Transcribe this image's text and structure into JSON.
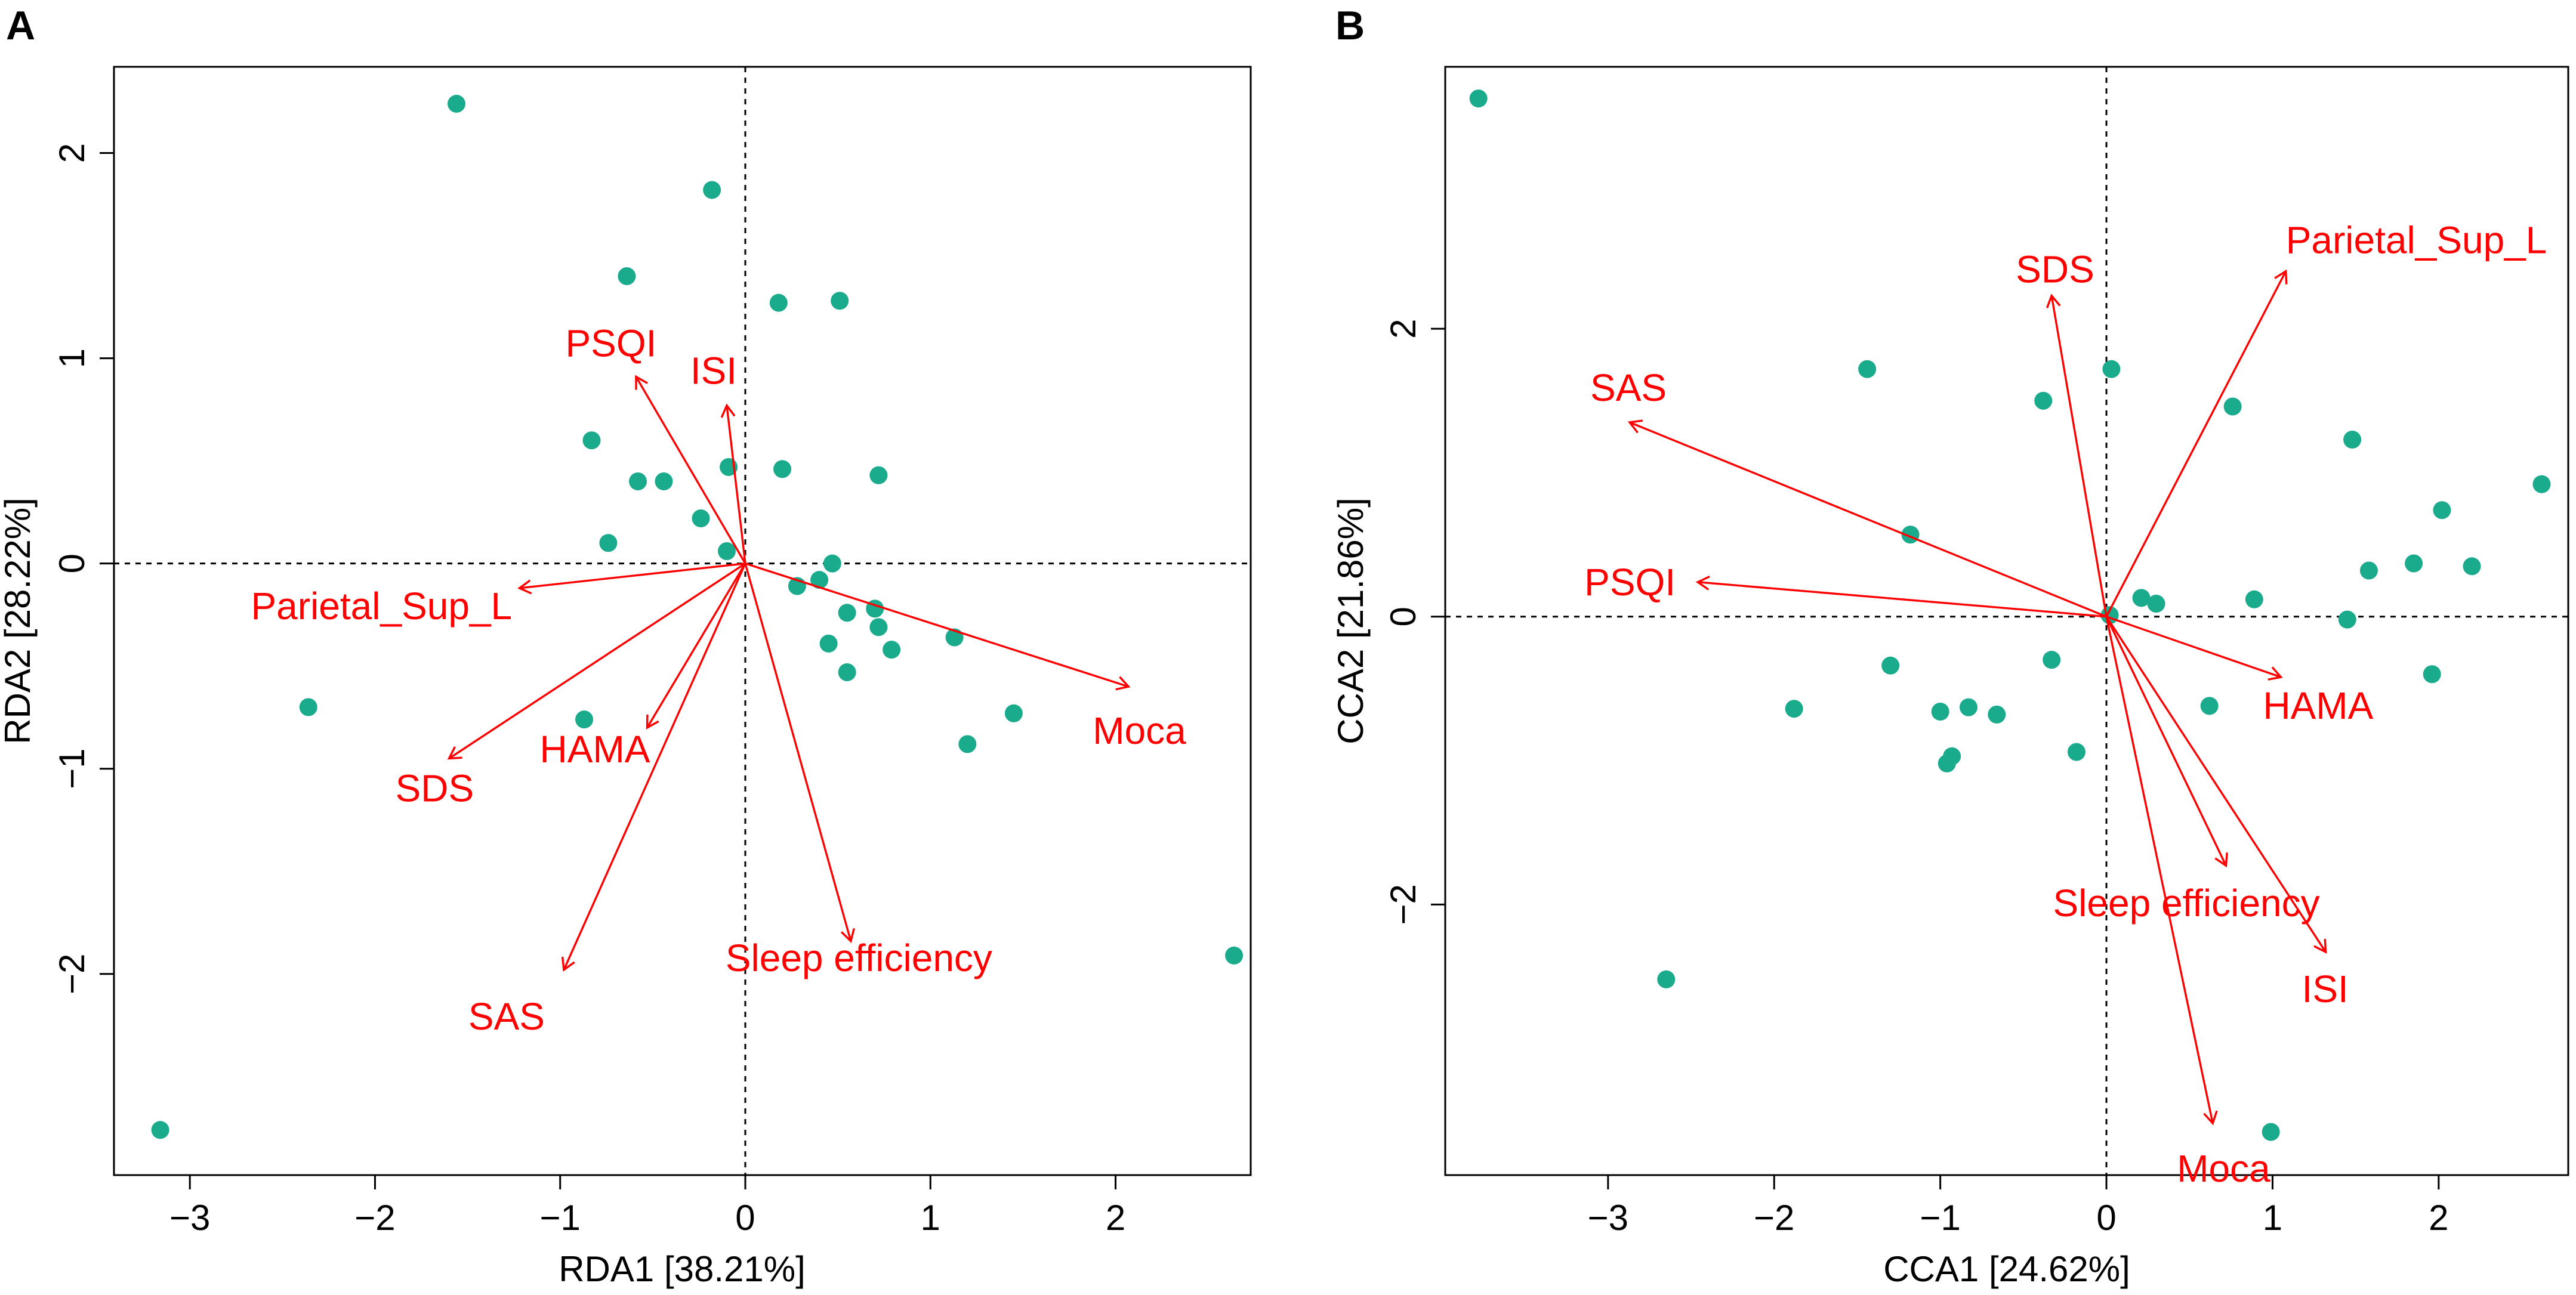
{
  "chart_data": [
    {
      "panel": "A",
      "type": "scatter",
      "title": "",
      "xlabel": "RDA1  [38.21%]",
      "ylabel": "RDA2  [28.22%]",
      "xlim": [
        -3.41,
        2.73
      ],
      "ylim": [
        -2.98,
        2.42
      ],
      "xticks": [
        -3,
        -2,
        -1,
        0,
        1,
        2
      ],
      "yticks": [
        -2,
        -1,
        0,
        1,
        2
      ],
      "point_color": "#1aaa8c",
      "arrow_color": "#ff0000",
      "points": [
        {
          "x": -1.56,
          "y": 2.24
        },
        {
          "x": -0.18,
          "y": 1.82
        },
        {
          "x": -0.64,
          "y": 1.4
        },
        {
          "x": 0.18,
          "y": 1.27
        },
        {
          "x": 0.51,
          "y": 1.28
        },
        {
          "x": -0.83,
          "y": 0.6
        },
        {
          "x": -0.58,
          "y": 0.4
        },
        {
          "x": -0.44,
          "y": 0.4
        },
        {
          "x": -0.09,
          "y": 0.47
        },
        {
          "x": 0.2,
          "y": 0.46
        },
        {
          "x": 0.72,
          "y": 0.43
        },
        {
          "x": -0.24,
          "y": 0.22
        },
        {
          "x": -0.74,
          "y": 0.1
        },
        {
          "x": -0.1,
          "y": 0.06
        },
        {
          "x": 0.47,
          "y": 0.0
        },
        {
          "x": 0.4,
          "y": -0.08
        },
        {
          "x": 0.28,
          "y": -0.11
        },
        {
          "x": 0.55,
          "y": -0.24
        },
        {
          "x": 0.7,
          "y": -0.22
        },
        {
          "x": 0.72,
          "y": -0.31
        },
        {
          "x": 0.45,
          "y": -0.39
        },
        {
          "x": 0.79,
          "y": -0.42
        },
        {
          "x": 0.55,
          "y": -0.53
        },
        {
          "x": 1.13,
          "y": -0.36
        },
        {
          "x": 1.45,
          "y": -0.73
        },
        {
          "x": 1.2,
          "y": -0.88
        },
        {
          "x": -0.87,
          "y": -0.76
        },
        {
          "x": -2.36,
          "y": -0.7
        },
        {
          "x": 2.64,
          "y": -1.91
        },
        {
          "x": -3.16,
          "y": -2.76
        }
      ],
      "arrows": [
        {
          "label": "PSQI",
          "x": -0.59,
          "y": 0.91
        },
        {
          "label": "ISI",
          "x": -0.1,
          "y": 0.77
        },
        {
          "label": "Parietal_Sup_L",
          "x": -1.22,
          "y": -0.12
        },
        {
          "label": "SDS",
          "x": -1.6,
          "y": -0.95
        },
        {
          "label": "HAMA",
          "x": -0.53,
          "y": -0.8
        },
        {
          "label": "SAS",
          "x": -0.98,
          "y": -1.98
        },
        {
          "label": "Sleep efficiency",
          "x": 0.57,
          "y": -1.84
        },
        {
          "label": "Moca",
          "x": 2.07,
          "y": -0.6
        }
      ]
    },
    {
      "panel": "B",
      "type": "scatter",
      "title": "",
      "xlabel": "CCA1  [24.62%]",
      "ylabel": "CCA2  [21.86%]",
      "xlim": [
        -3.98,
        2.78
      ],
      "ylim": [
        -3.88,
        3.82
      ],
      "xticks": [
        -3,
        -2,
        -1,
        0,
        1,
        2
      ],
      "yticks": [
        -2,
        0,
        2
      ],
      "point_color": "#1aaa8c",
      "arrow_color": "#ff0000",
      "points": [
        {
          "x": -3.78,
          "y": 3.6
        },
        {
          "x": -1.44,
          "y": 1.72
        },
        {
          "x": 0.03,
          "y": 1.72
        },
        {
          "x": -0.38,
          "y": 1.5
        },
        {
          "x": 0.76,
          "y": 1.46
        },
        {
          "x": 1.48,
          "y": 1.23
        },
        {
          "x": 2.62,
          "y": 0.92
        },
        {
          "x": 2.02,
          "y": 0.74
        },
        {
          "x": -1.18,
          "y": 0.57
        },
        {
          "x": 1.85,
          "y": 0.37
        },
        {
          "x": 2.2,
          "y": 0.35
        },
        {
          "x": 1.58,
          "y": 0.32
        },
        {
          "x": 0.21,
          "y": 0.13
        },
        {
          "x": 0.3,
          "y": 0.09
        },
        {
          "x": 0.89,
          "y": 0.12
        },
        {
          "x": 0.02,
          "y": 0.01
        },
        {
          "x": 1.45,
          "y": -0.02
        },
        {
          "x": -0.33,
          "y": -0.3
        },
        {
          "x": -1.3,
          "y": -0.34
        },
        {
          "x": 1.96,
          "y": -0.4
        },
        {
          "x": -1.88,
          "y": -0.64
        },
        {
          "x": -1.0,
          "y": -0.66
        },
        {
          "x": -0.83,
          "y": -0.63
        },
        {
          "x": -0.66,
          "y": -0.68
        },
        {
          "x": 0.62,
          "y": -0.62
        },
        {
          "x": -0.93,
          "y": -0.97
        },
        {
          "x": -0.96,
          "y": -1.02
        },
        {
          "x": -0.18,
          "y": -0.94
        },
        {
          "x": -2.65,
          "y": -2.52
        },
        {
          "x": 0.99,
          "y": -3.58
        }
      ],
      "arrows": [
        {
          "label": "SDS",
          "x": -0.33,
          "y": 2.23
        },
        {
          "label": "Parietal_Sup_L",
          "x": 1.08,
          "y": 2.4
        },
        {
          "label": "SAS",
          "x": -2.87,
          "y": 1.35
        },
        {
          "label": "PSQI",
          "x": -2.46,
          "y": 0.24
        },
        {
          "label": "HAMA",
          "x": 1.05,
          "y": -0.42
        },
        {
          "label": "Sleep efficiency",
          "x": 0.72,
          "y": -1.73
        },
        {
          "label": "ISI",
          "x": 1.32,
          "y": -2.33
        },
        {
          "label": "Moca",
          "x": 0.64,
          "y": -3.52
        }
      ]
    }
  ]
}
